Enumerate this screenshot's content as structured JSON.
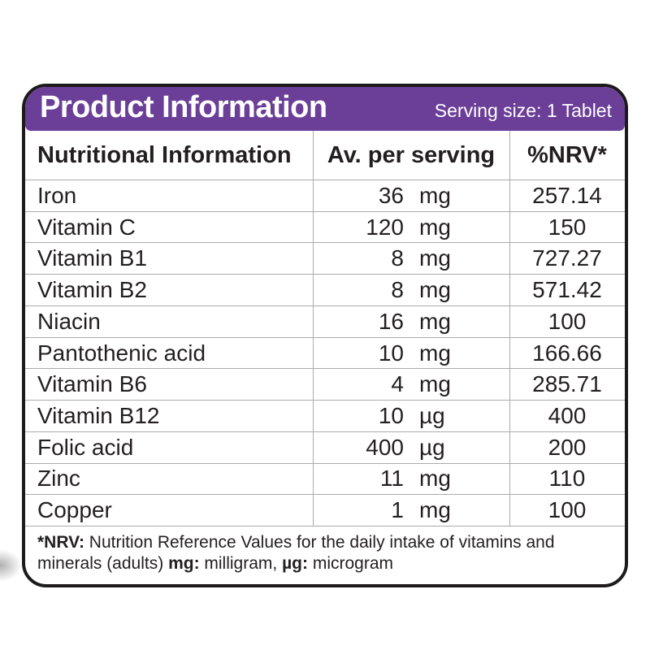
{
  "label": {
    "title": "Product Information",
    "serving_size": "Serving size: 1 Tablet",
    "table": {
      "header_name": "Nutritional Information",
      "header_amount": "Av. per serving",
      "header_nrv": "%NRV*",
      "rows": [
        {
          "name": "Iron",
          "amount": "36",
          "unit": "mg",
          "nrv": "257.14"
        },
        {
          "name": "Vitamin C",
          "amount": "120",
          "unit": "mg",
          "nrv": "150"
        },
        {
          "name": "Vitamin B1",
          "amount": "8",
          "unit": "mg",
          "nrv": "727.27"
        },
        {
          "name": "Vitamin B2",
          "amount": "8",
          "unit": "mg",
          "nrv": "571.42"
        },
        {
          "name": "Niacin",
          "amount": "16",
          "unit": "mg",
          "nrv": "100"
        },
        {
          "name": "Pantothenic acid",
          "amount": "10",
          "unit": "mg",
          "nrv": "166.66"
        },
        {
          "name": "Vitamin B6",
          "amount": "4",
          "unit": "mg",
          "nrv": "285.71"
        },
        {
          "name": "Vitamin B12",
          "amount": "10",
          "unit": "µg",
          "nrv": "400"
        },
        {
          "name": "Folic acid",
          "amount": "400",
          "unit": "µg",
          "nrv": "200"
        },
        {
          "name": "Zinc",
          "amount": "11",
          "unit": "mg",
          "nrv": "110"
        },
        {
          "name": "Copper",
          "amount": "1",
          "unit": "mg",
          "nrv": "100"
        }
      ]
    },
    "footnote": {
      "nrv_label": "*NRV:",
      "nrv_text": " Nutrition Reference Values for the daily intake of vitamins and minerals (adults) ",
      "mg_label": "mg:",
      "mg_text": " milligram, ",
      "ug_label": "µg:",
      "ug_text": " microgram"
    },
    "colors": {
      "header_purple": "#6B3E98",
      "border_black": "#1C1A1B",
      "divider_gray": "#ABABAB",
      "text_black": "#231F20"
    }
  }
}
